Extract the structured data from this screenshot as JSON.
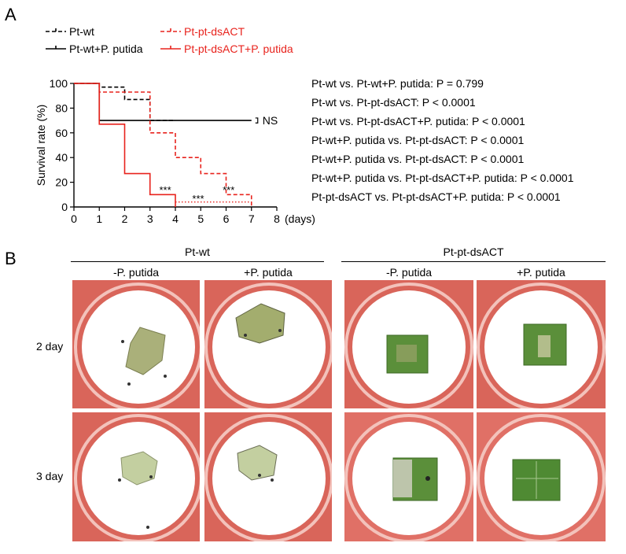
{
  "panel_a": {
    "letter": "A",
    "legend": [
      {
        "label": "Pt-wt",
        "color": "#000000",
        "style": "dashed"
      },
      {
        "label": "Pt-wt+P. putida",
        "color": "#000000",
        "style": "solid"
      },
      {
        "label": "Pt-pt-dsACT",
        "color": "#e8231d",
        "style": "dashed"
      },
      {
        "label": "Pt-pt-dsACT+P. putida",
        "color": "#e8231d",
        "style": "solid"
      }
    ],
    "ns_label": "NS",
    "stars": [
      "***",
      "***",
      "***"
    ],
    "comparisons": [
      "Pt-wt vs. Pt-wt+P. putida: P = 0.799",
      "Pt-wt vs. Pt-pt-dsACT: P < 0.0001",
      "Pt-wt vs. Pt-pt-dsACT+P. putida: P < 0.0001",
      "Pt-wt+P. putida vs. Pt-pt-dsACT: P < 0.0001",
      "Pt-wt+P. putida vs. Pt-pt-dsACT: P < 0.0001",
      "Pt-wt+P. putida vs. Pt-pt-dsACT+P. putida: P < 0.0001",
      "Pt-pt-dsACT vs. Pt-pt-dsACT+P. putida: P < 0.0001"
    ]
  },
  "chart_data": {
    "type": "line",
    "title": "",
    "xlabel": "(days)",
    "ylabel": "Survival rate (%)",
    "xlim": [
      0,
      8
    ],
    "ylim": [
      0,
      100
    ],
    "xticks": [
      0,
      1,
      2,
      3,
      4,
      5,
      6,
      7,
      8
    ],
    "yticks": [
      0,
      20,
      40,
      60,
      80,
      100
    ],
    "step": true,
    "series": [
      {
        "name": "Pt-wt",
        "color": "#000000",
        "dash": true,
        "x": [
          0,
          1,
          2,
          3,
          4
        ],
        "y": [
          100,
          97,
          87,
          70,
          70
        ]
      },
      {
        "name": "Pt-wt+P. putida",
        "color": "#000000",
        "dash": false,
        "x": [
          0,
          1,
          7
        ],
        "y": [
          100,
          70,
          70
        ]
      },
      {
        "name": "Pt-pt-dsACT",
        "color": "#e8231d",
        "dash": true,
        "x": [
          0,
          1,
          2,
          3,
          4,
          5,
          6,
          7
        ],
        "y": [
          100,
          93,
          93,
          60,
          40,
          27,
          10,
          0
        ]
      },
      {
        "name": "Pt-pt-dsACT+P. putida",
        "color": "#e8231d",
        "dash": false,
        "x": [
          0,
          1,
          2,
          3,
          4
        ],
        "y": [
          100,
          67,
          27,
          10,
          0
        ]
      }
    ]
  },
  "panel_b": {
    "letter": "B",
    "group_headers": [
      "Pt-wt",
      "Pt-pt-dsACT"
    ],
    "col_headers": [
      "-P. putida",
      "+P. putida",
      "-P. putida",
      "+P. putida"
    ],
    "row_headers": [
      "2 day",
      "3 day"
    ],
    "colors": {
      "background": "#d9655a",
      "paper": "#ffffff",
      "dish_rim": "#f3c2bb",
      "leaf_dead": "#aab07a",
      "leaf_live": "#5b8f3a"
    }
  }
}
